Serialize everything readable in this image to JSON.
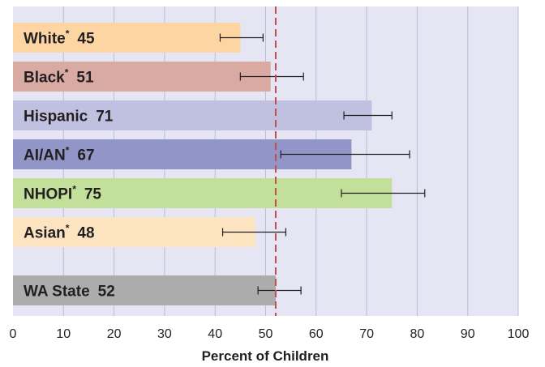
{
  "chart_data": {
    "type": "bar",
    "orientation": "horizontal",
    "title": "",
    "xlabel": "Percent of Children",
    "ylabel": "",
    "xlim": [
      0,
      100
    ],
    "xticks": [
      0,
      10,
      20,
      30,
      40,
      50,
      60,
      70,
      80,
      90,
      100
    ],
    "grid": "vertical",
    "reference_line": {
      "value": 52,
      "style": "dashed",
      "color": "#c0504d",
      "label": "WA State"
    },
    "categories": [
      {
        "name": "White",
        "asterisk": true,
        "value": 45,
        "ci": [
          41,
          49.5
        ],
        "color": "#fdd5a3"
      },
      {
        "name": "Black",
        "asterisk": true,
        "value": 51,
        "ci": [
          45,
          57.5
        ],
        "color": "#d9aaa1"
      },
      {
        "name": "Hispanic",
        "asterisk": false,
        "value": 71,
        "ci": [
          65.5,
          75
        ],
        "color": "#c0c0e0"
      },
      {
        "name": "AI/AN",
        "asterisk": true,
        "value": 67,
        "ci": [
          53,
          78.5
        ],
        "color": "#9195c8"
      },
      {
        "name": "NHOPI",
        "asterisk": true,
        "value": 75,
        "ci": [
          65,
          81.5
        ],
        "color": "#c2e09a"
      },
      {
        "name": "Asian",
        "asterisk": true,
        "value": 48,
        "ci": [
          41.5,
          54
        ],
        "color": "#fde4c0"
      },
      {
        "name": "WA State",
        "asterisk": false,
        "value": 52,
        "ci": [
          48.5,
          57
        ],
        "color": "#acacac",
        "separated": true
      }
    ],
    "colors": {
      "plot_background": "#e5e5f3",
      "gridline": "#bcbcd6",
      "error_bar": "#231f20"
    }
  }
}
